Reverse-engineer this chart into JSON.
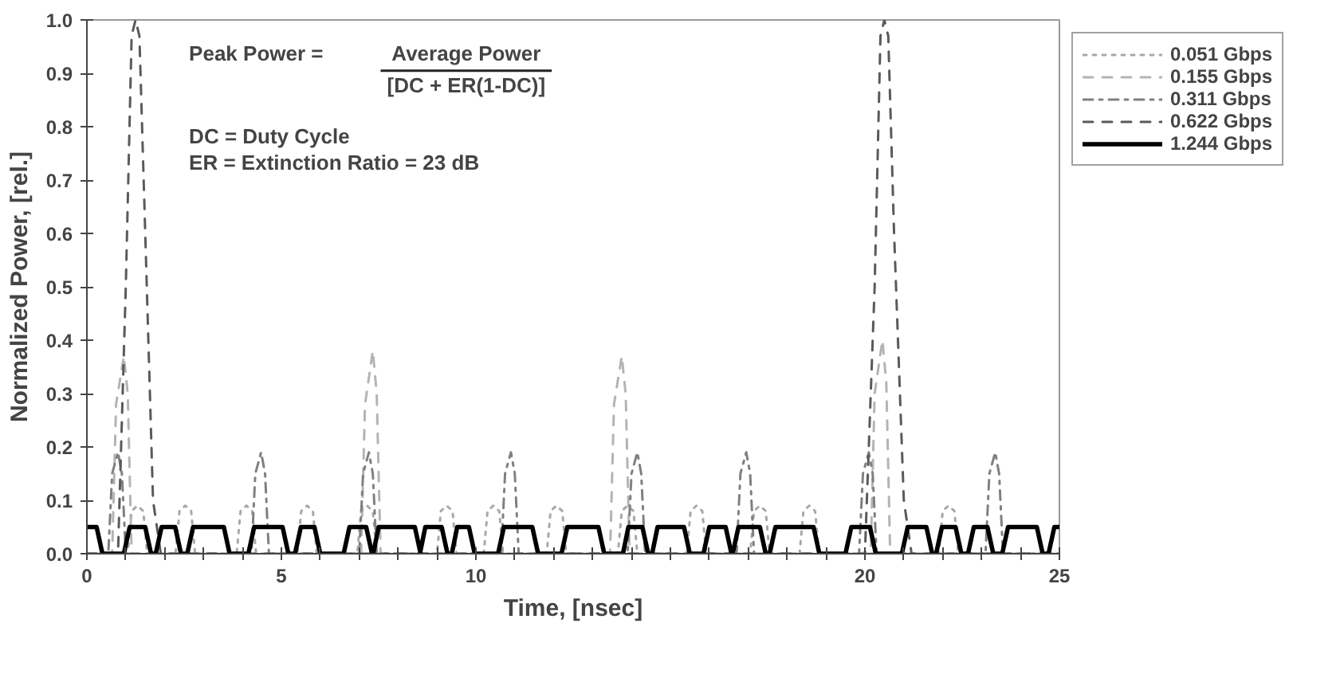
{
  "chart_data": {
    "type": "line",
    "xlabel": "Time, [nsec]",
    "ylabel": "Normalized Power, [rel.]",
    "xlim": [
      0,
      25
    ],
    "ylim": [
      0,
      1.0
    ],
    "xticks": [
      0,
      {
        "value": 1,
        "label": null
      },
      {
        "value": 2,
        "label": null
      },
      {
        "value": 3,
        "label": null
      },
      {
        "value": 4,
        "label": null
      },
      5,
      {
        "value": 6,
        "label": null
      },
      {
        "value": 7,
        "label": null
      },
      {
        "value": 8,
        "label": null
      },
      {
        "value": 9,
        "label": null
      },
      10,
      {
        "value": 11,
        "label": null
      },
      {
        "value": 12,
        "label": null
      },
      {
        "value": 13,
        "label": null
      },
      {
        "value": 14,
        "label": null
      },
      {
        "value": 15,
        "label": null
      },
      {
        "value": 16,
        "label": null
      },
      {
        "value": 17,
        "label": null
      },
      {
        "value": 18,
        "label": null
      },
      {
        "value": 19,
        "label": null
      },
      20,
      {
        "value": 21,
        "label": null
      },
      {
        "value": 22,
        "label": null
      },
      {
        "value": 23,
        "label": null
      },
      {
        "value": 24,
        "label": null
      },
      25
    ],
    "yticks": [
      {
        "value": 0,
        "label": "0.0"
      },
      0.1,
      0.2,
      0.3,
      0.4,
      0.5,
      0.6,
      0.7,
      0.8,
      0.9,
      {
        "value": 1.0,
        "label": "1.0"
      }
    ],
    "grid": false,
    "legend": "right",
    "annotations": [
      "Peak Power  =",
      "Average Power",
      "[DC + ER(1-DC)]",
      "DC  =  Duty Cycle",
      "ER  =  Extinction Ratio  =  23 dB"
    ],
    "series": [
      {
        "name": "0.051 Gbps",
        "color": "#a8a8a8",
        "line_style": "dotted",
        "x": [
          0,
          1.05,
          1.15,
          1.3,
          1.45,
          1.55,
          2.28,
          2.38,
          2.53,
          2.68,
          2.78,
          3.85,
          3.95,
          4.1,
          4.25,
          4.35,
          5.41,
          5.51,
          5.66,
          5.81,
          5.91,
          6.95,
          7.05,
          7.2,
          7.35,
          7.45,
          9.0,
          9.1,
          9.25,
          9.4,
          9.5,
          10.2,
          10.3,
          10.45,
          10.6,
          10.7,
          11.82,
          11.92,
          12.07,
          12.22,
          12.32,
          13.65,
          13.75,
          13.9,
          14.05,
          14.15,
          15.42,
          15.52,
          15.67,
          15.82,
          15.92,
          17.05,
          17.15,
          17.3,
          17.45,
          17.55,
          18.32,
          18.42,
          18.57,
          18.72,
          18.82,
          21.9,
          22.0,
          22.15,
          22.3,
          22.4,
          25
        ],
        "values": [
          0,
          0,
          0.08,
          0.09,
          0.08,
          0,
          0,
          0.08,
          0.09,
          0.08,
          0,
          0,
          0.08,
          0.09,
          0.08,
          0,
          0,
          0.08,
          0.09,
          0.08,
          0,
          0,
          0.08,
          0.09,
          0.08,
          0,
          0,
          0.08,
          0.09,
          0.08,
          0,
          0,
          0.08,
          0.09,
          0.08,
          0,
          0,
          0.08,
          0.09,
          0.08,
          0,
          0,
          0.08,
          0.09,
          0.08,
          0,
          0,
          0.08,
          0.09,
          0.08,
          0,
          0,
          0.08,
          0.09,
          0.08,
          0,
          0,
          0.08,
          0.09,
          0.08,
          0,
          0,
          0.08,
          0.09,
          0.08,
          0,
          0
        ]
      },
      {
        "name": "0.155 Gbps",
        "color": "#b4b4b4",
        "line_style": "dashed",
        "x": [
          0,
          0.65,
          0.75,
          0.95,
          1.05,
          1.15,
          7.05,
          7.15,
          7.35,
          7.45,
          7.55,
          13.45,
          13.55,
          13.75,
          13.85,
          13.95,
          20.15,
          20.25,
          20.45,
          20.55,
          20.65,
          25
        ],
        "values": [
          0,
          0,
          0.28,
          0.37,
          0.3,
          0,
          0,
          0.28,
          0.38,
          0.3,
          0,
          0,
          0.28,
          0.37,
          0.3,
          0,
          0,
          0.3,
          0.4,
          0.32,
          0,
          0
        ]
      },
      {
        "name": "0.311 Gbps",
        "color": "#808080",
        "line_style": "dashdot",
        "x": [
          0,
          0.55,
          0.65,
          0.8,
          0.9,
          1.0,
          4.23,
          4.33,
          4.48,
          4.58,
          4.68,
          7.0,
          7.1,
          7.25,
          7.35,
          7.45,
          10.65,
          10.75,
          10.9,
          11.0,
          11.1,
          13.9,
          14.0,
          14.15,
          14.25,
          14.35,
          16.7,
          16.8,
          16.95,
          17.05,
          17.15,
          19.85,
          19.95,
          20.1,
          20.2,
          20.3,
          23.1,
          23.2,
          23.35,
          23.45,
          23.55,
          25
        ],
        "values": [
          0,
          0,
          0.15,
          0.19,
          0.15,
          0,
          0,
          0.15,
          0.19,
          0.15,
          0,
          0,
          0.15,
          0.19,
          0.15,
          0,
          0,
          0.15,
          0.19,
          0.15,
          0,
          0,
          0.15,
          0.19,
          0.15,
          0,
          0,
          0.15,
          0.19,
          0.15,
          0,
          0,
          0.15,
          0.19,
          0.15,
          0,
          0,
          0.15,
          0.19,
          0.15,
          0,
          0
        ]
      },
      {
        "name": "0.622 Gbps",
        "color": "#5a5a5a",
        "line_style": "dashed",
        "x": [
          0,
          0.8,
          1.0,
          1.15,
          1.25,
          1.35,
          1.5,
          1.7,
          1.9,
          20.0,
          20.25,
          20.4,
          20.5,
          20.6,
          20.75,
          21.0,
          21.2,
          25
        ],
        "values": [
          0,
          0,
          0.5,
          0.97,
          1.0,
          0.97,
          0.6,
          0.1,
          0,
          0,
          0.5,
          0.97,
          1.0,
          0.97,
          0.6,
          0.1,
          0,
          0
        ]
      },
      {
        "name": "1.244 Gbps",
        "color": "#000000",
        "line_style": "solid",
        "x": [
          0,
          0.25,
          0.4,
          0.95,
          1.1,
          1.5,
          1.65,
          1.77,
          1.92,
          2.27,
          2.42,
          2.58,
          2.73,
          3.52,
          3.67,
          4.15,
          4.3,
          5.03,
          5.18,
          5.35,
          5.5,
          5.85,
          6.0,
          6.6,
          6.75,
          7.18,
          7.33,
          7.36,
          7.5,
          8.43,
          8.58,
          8.56,
          8.7,
          9.12,
          9.27,
          9.38,
          9.52,
          9.82,
          9.97,
          10.57,
          10.72,
          11.45,
          11.6,
          12.2,
          12.35,
          13.15,
          13.3,
          13.78,
          13.92,
          14.28,
          14.43,
          14.53,
          14.67,
          15.35,
          15.5,
          15.85,
          16.0,
          16.42,
          16.57,
          16.6,
          16.75,
          17.3,
          17.45,
          17.55,
          17.7,
          18.68,
          18.83,
          19.5,
          19.65,
          20.13,
          20.28,
          20.95,
          21.1,
          21.58,
          21.73,
          21.83,
          21.98,
          22.33,
          22.48,
          22.65,
          22.8,
          23.15,
          23.3,
          23.53,
          23.68,
          24.42,
          24.57,
          24.72,
          24.87,
          25
        ],
        "values": [
          0.05,
          0.05,
          0,
          0,
          0.05,
          0.05,
          0,
          0,
          0.05,
          0.05,
          0,
          0,
          0.05,
          0.05,
          0,
          0,
          0.05,
          0.05,
          0,
          0,
          0.05,
          0.05,
          0,
          0,
          0.05,
          0.05,
          0,
          0,
          0.05,
          0.05,
          0,
          0,
          0.05,
          0.05,
          0,
          0,
          0.05,
          0.05,
          0,
          0,
          0.05,
          0.05,
          0,
          0,
          0.05,
          0.05,
          0,
          0,
          0.05,
          0.05,
          0,
          0,
          0.05,
          0.05,
          0,
          0,
          0.05,
          0.05,
          0,
          0,
          0.05,
          0.05,
          0,
          0,
          0.05,
          0.05,
          0,
          0,
          0.05,
          0.05,
          0,
          0,
          0.05,
          0.05,
          0,
          0,
          0.05,
          0.05,
          0,
          0,
          0.05,
          0.05,
          0,
          0,
          0.05,
          0.05,
          0,
          0,
          0.05,
          0.05
        ]
      }
    ]
  }
}
